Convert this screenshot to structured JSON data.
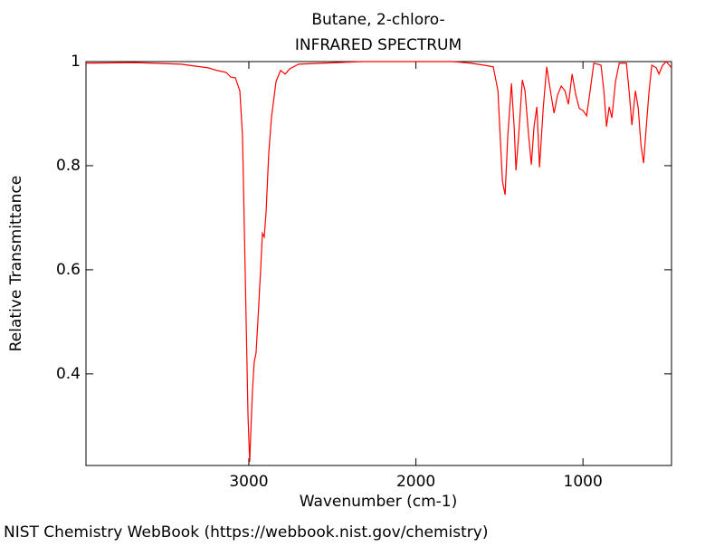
{
  "chart_data": {
    "type": "line",
    "title": "Butane, 2-chloro-",
    "subtitle": "INFRARED SPECTRUM",
    "x_label": "Wavenumber (cm-1)",
    "y_label": "Relative Transmittance",
    "source": "NIST Chemistry WebBook (https://webbook.nist.gov/chemistry)",
    "xlim": [
      3975,
      470
    ],
    "ylim": [
      0.224,
      1
    ],
    "xticks": [
      3000,
      2000,
      1000
    ],
    "yticks": [
      0.4,
      0.6,
      0.8,
      1
    ],
    "x": [
      3975,
      3677,
      3406,
      3244,
      3190,
      3135,
      3108,
      3081,
      3054,
      3038,
      3022,
      3005,
      2995,
      2989,
      2978,
      2968,
      2957,
      2946,
      2930,
      2919,
      2908,
      2897,
      2881,
      2865,
      2837,
      2810,
      2783,
      2756,
      2702,
      2322,
      1780,
      1672,
      1591,
      1537,
      1509,
      1493,
      1482,
      1466,
      1450,
      1428,
      1412,
      1401,
      1385,
      1363,
      1347,
      1325,
      1309,
      1293,
      1276,
      1260,
      1238,
      1217,
      1195,
      1173,
      1152,
      1130,
      1108,
      1087,
      1065,
      1043,
      1022,
      1000,
      978,
      957,
      935,
      892,
      875,
      859,
      843,
      827,
      805,
      783,
      740,
      724,
      707,
      686,
      669,
      653,
      637,
      621,
      604,
      588,
      561,
      545,
      523,
      501,
      470
    ],
    "series": [
      {
        "name": "Butane, 2-chloro-",
        "color": "#ff0000",
        "values": [
          0.997,
          0.998,
          0.995,
          0.988,
          0.983,
          0.979,
          0.97,
          0.969,
          0.944,
          0.857,
          0.597,
          0.318,
          0.231,
          0.283,
          0.37,
          0.423,
          0.44,
          0.501,
          0.597,
          0.67,
          0.663,
          0.71,
          0.823,
          0.892,
          0.962,
          0.983,
          0.976,
          0.986,
          0.995,
          1.0,
          1.0,
          0.997,
          0.993,
          0.99,
          0.944,
          0.84,
          0.77,
          0.744,
          0.857,
          0.958,
          0.875,
          0.791,
          0.857,
          0.965,
          0.944,
          0.857,
          0.802,
          0.875,
          0.913,
          0.797,
          0.91,
          0.99,
          0.944,
          0.901,
          0.936,
          0.953,
          0.944,
          0.918,
          0.976,
          0.936,
          0.91,
          0.906,
          0.896,
          0.944,
          0.997,
          0.993,
          0.944,
          0.875,
          0.913,
          0.892,
          0.962,
          0.997,
          0.997,
          0.944,
          0.878,
          0.944,
          0.91,
          0.84,
          0.805,
          0.875,
          0.944,
          0.993,
          0.988,
          0.976,
          0.993,
          1.0,
          0.988
        ]
      }
    ]
  }
}
